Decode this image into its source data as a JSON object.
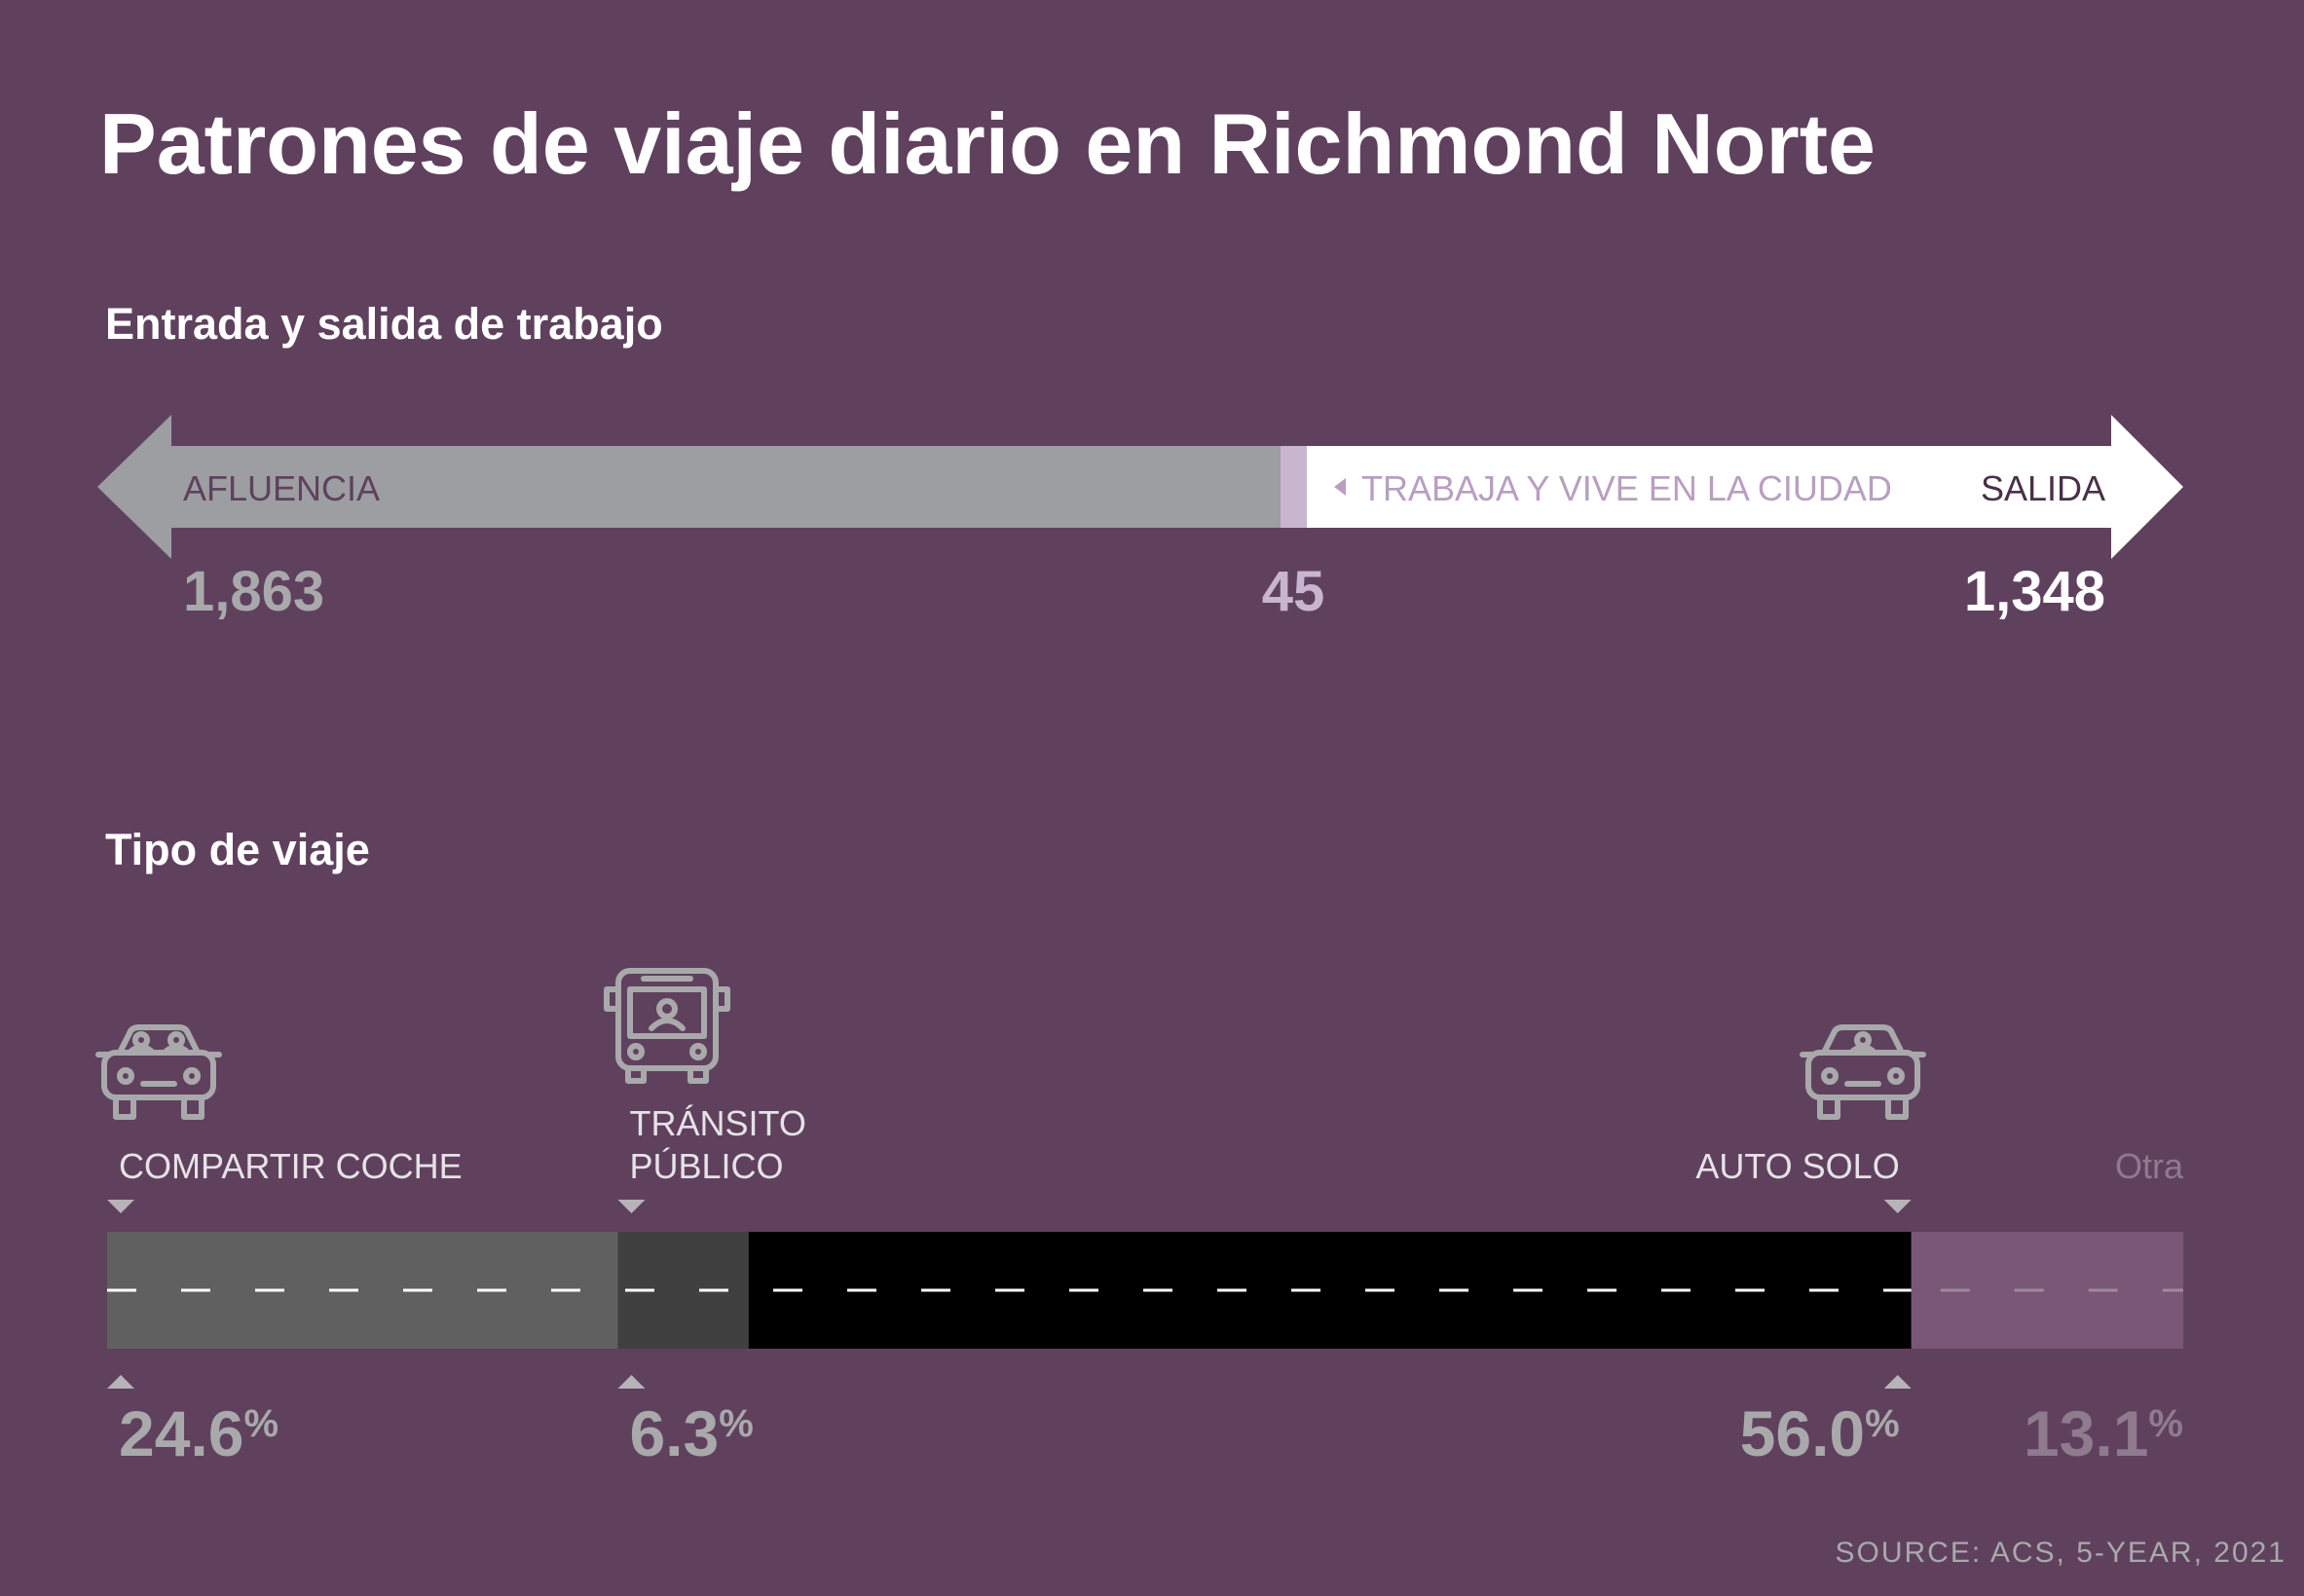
{
  "title": "Patrones de viaje diario en Richmond Norte",
  "flow": {
    "heading": "Entrada y salida de trabajo",
    "inflow": {
      "label": "AFLUENCIA",
      "value": "1,863"
    },
    "both": {
      "label": "TRABAJA Y VIVE EN LA CIUDAD",
      "value": "45"
    },
    "outflow": {
      "label": "SALIDA",
      "value": "1,348"
    }
  },
  "mode": {
    "heading": "Tipo de viaje",
    "segments": [
      {
        "label_lines": [
          "COMPARTIR COCHE"
        ],
        "value": "24.6",
        "unit": "%",
        "color": "#606060",
        "icon": "carpool-car-icon"
      },
      {
        "label_lines": [
          "TRÁNSITO",
          "PÚBLICO"
        ],
        "value": "6.3",
        "unit": "%",
        "color": "#404040",
        "icon": "bus-icon"
      },
      {
        "label_lines": [
          "AUTO SOLO"
        ],
        "value": "56.0",
        "unit": "%",
        "color": "#000000",
        "icon": "solo-car-icon"
      },
      {
        "label_lines": [
          "Otra"
        ],
        "value": "13.1",
        "unit": "%",
        "color": "#7a5677",
        "icon": ""
      }
    ]
  },
  "source": "SOURCE: ACS, 5-YEAR, 2021",
  "colors": {
    "background": "#5f415e",
    "inflow": "#9c9ea1",
    "both": "#c8b5cf",
    "outflow": "#ffffff",
    "both_text": "#b89fc0",
    "dark_text": "#5f415e",
    "muted": "#a9a9ab"
  },
  "chart_data": [
    {
      "type": "bar",
      "title": "Entrada y salida de trabajo",
      "categories": [
        "AFLUENCIA",
        "TRABAJA Y VIVE EN LA CIUDAD",
        "SALIDA"
      ],
      "values": [
        1863,
        45,
        1348
      ]
    },
    {
      "type": "bar",
      "title": "Tipo de viaje",
      "categories": [
        "COMPARTIR COCHE",
        "TRÁNSITO PÚBLICO",
        "AUTO SOLO",
        "Otra"
      ],
      "values": [
        24.6,
        6.3,
        56.0,
        13.1
      ],
      "unit": "%"
    }
  ]
}
